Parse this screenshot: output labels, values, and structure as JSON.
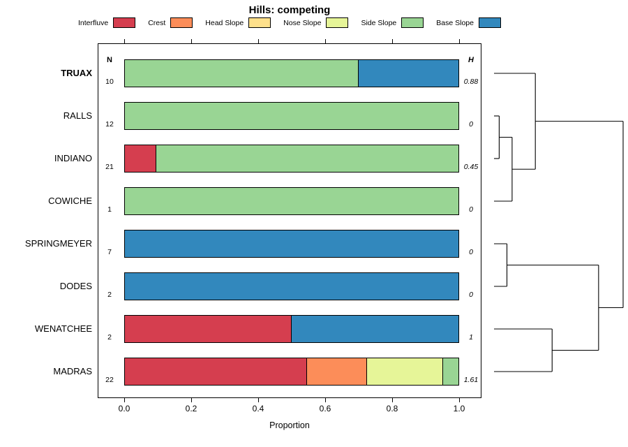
{
  "title": "Hills: competing",
  "headers": {
    "n": "N",
    "h": "H"
  },
  "axis": {
    "label": "Proportion",
    "ticks": [
      "0.0",
      "0.2",
      "0.4",
      "0.6",
      "0.8",
      "1.0"
    ]
  },
  "legend": {
    "items": [
      {
        "label": "Interfluve",
        "color": "#D53E4F"
      },
      {
        "label": "Crest",
        "color": "#FC8D59"
      },
      {
        "label": "Head Slope",
        "color": "#FEE08B"
      },
      {
        "label": "Nose Slope",
        "color": "#E6F598"
      },
      {
        "label": "Side Slope",
        "color": "#99D594"
      },
      {
        "label": "Base Slope",
        "color": "#3288BD"
      }
    ]
  },
  "chart_data": {
    "type": "bar",
    "stacked": true,
    "orientation": "horizontal",
    "title": "Hills: competing",
    "xlabel": "Proportion",
    "xlim": [
      0,
      1
    ],
    "x_ticks": [
      0.0,
      0.2,
      0.4,
      0.6,
      0.8,
      1.0
    ],
    "series_names": [
      "Interfluve",
      "Crest",
      "Head Slope",
      "Nose Slope",
      "Side Slope",
      "Base Slope"
    ],
    "series_colors": {
      "Interfluve": "#D53E4F",
      "Crest": "#FC8D59",
      "Head Slope": "#FEE08B",
      "Nose Slope": "#E6F598",
      "Side Slope": "#99D594",
      "Base Slope": "#3288BD"
    },
    "categories": [
      "TRUAX",
      "RALLS",
      "INDIANO",
      "COWICHE",
      "SPRINGMEYER",
      "DODES",
      "WENATCHEE",
      "MADRAS"
    ],
    "rows": [
      {
        "name": "TRUAX",
        "bold": true,
        "n": "10",
        "h": "0.88",
        "segments": [
          {
            "series": "Side Slope",
            "value": 0.7
          },
          {
            "series": "Base Slope",
            "value": 0.3
          }
        ]
      },
      {
        "name": "RALLS",
        "bold": false,
        "n": "12",
        "h": "0",
        "segments": [
          {
            "series": "Side Slope",
            "value": 1.0
          }
        ]
      },
      {
        "name": "INDIANO",
        "bold": false,
        "n": "21",
        "h": "0.45",
        "segments": [
          {
            "series": "Interfluve",
            "value": 0.095
          },
          {
            "series": "Side Slope",
            "value": 0.905
          }
        ]
      },
      {
        "name": "COWICHE",
        "bold": false,
        "n": "1",
        "h": "0",
        "segments": [
          {
            "series": "Side Slope",
            "value": 1.0
          }
        ]
      },
      {
        "name": "SPRINGMEYER",
        "bold": false,
        "n": "7",
        "h": "0",
        "segments": [
          {
            "series": "Base Slope",
            "value": 1.0
          }
        ]
      },
      {
        "name": "DODES",
        "bold": false,
        "n": "2",
        "h": "0",
        "segments": [
          {
            "series": "Base Slope",
            "value": 1.0
          }
        ]
      },
      {
        "name": "WENATCHEE",
        "bold": false,
        "n": "2",
        "h": "1",
        "segments": [
          {
            "series": "Interfluve",
            "value": 0.5
          },
          {
            "series": "Base Slope",
            "value": 0.5
          }
        ]
      },
      {
        "name": "MADRAS",
        "bold": false,
        "n": "22",
        "h": "1.61",
        "segments": [
          {
            "series": "Interfluve",
            "value": 0.545
          },
          {
            "series": "Crest",
            "value": 0.182
          },
          {
            "series": "Nose Slope",
            "value": 0.227
          },
          {
            "series": "Side Slope",
            "value": 0.046
          }
        ]
      }
    ],
    "dendrogram": {
      "merges": [
        {
          "a": "RALLS",
          "b": "INDIANO",
          "height": 0.04,
          "id": "c1"
        },
        {
          "a": "c1",
          "b": "COWICHE",
          "height": 0.14,
          "id": "c2"
        },
        {
          "a": "TRUAX",
          "b": "c2",
          "height": 0.32,
          "id": "c3"
        },
        {
          "a": "SPRINGMEYER",
          "b": "DODES",
          "height": 0.1,
          "id": "c4"
        },
        {
          "a": "WENATCHEE",
          "b": "MADRAS",
          "height": 0.45,
          "id": "c5"
        },
        {
          "a": "c4",
          "b": "c5",
          "height": 0.81,
          "id": "c6"
        },
        {
          "a": "c3",
          "b": "c6",
          "height": 1.0,
          "id": "c7"
        }
      ]
    }
  }
}
